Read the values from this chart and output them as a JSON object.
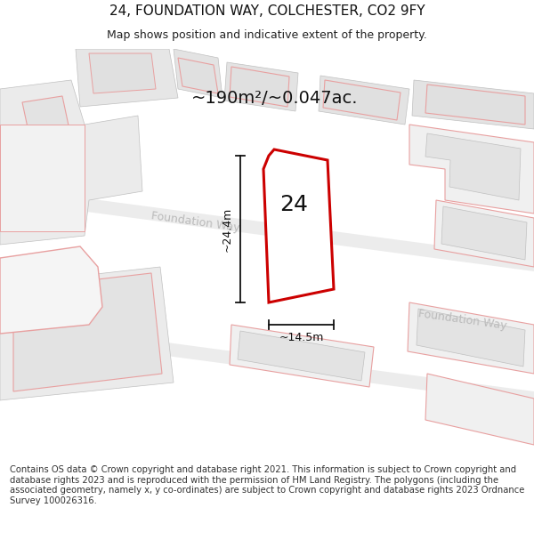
{
  "title": "24, FOUNDATION WAY, COLCHESTER, CO2 9FY",
  "subtitle": "Map shows position and indicative extent of the property.",
  "footer": "Contains OS data © Crown copyright and database right 2021. This information is subject to Crown copyright and database rights 2023 and is reproduced with the permission of HM Land Registry. The polygons (including the associated geometry, namely x, y co-ordinates) are subject to Crown copyright and database rights 2023 Ordnance Survey 100026316.",
  "area_label": "~190m²/~0.047ac.",
  "width_label": "~14.5m",
  "height_label": "~24.4m",
  "number_label": "24",
  "map_bg": "#f7f7f7",
  "building_fill": "#e8e8e8",
  "building_outline_pink": "#e8a0a0",
  "building_outline_grey": "#c0c0c0",
  "highlight_fill": "#ffffff",
  "highlight_stroke": "#cc0000",
  "road_label_color": "#aaaaaa",
  "dim_line_color": "#111111",
  "title_fontsize": 11,
  "subtitle_fontsize": 9,
  "footer_fontsize": 7.2
}
